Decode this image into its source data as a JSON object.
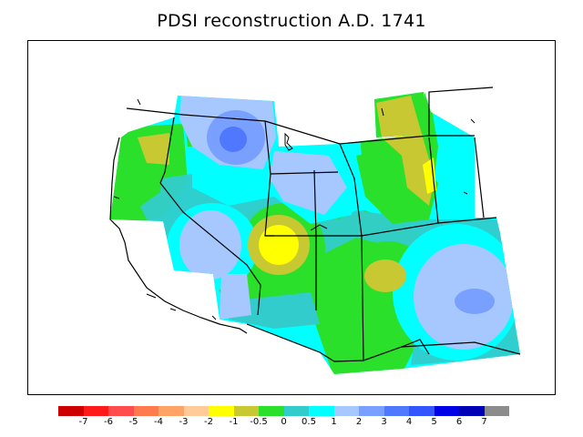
{
  "title": "PDSI reconstruction A.D. 1741",
  "legend": {
    "colors": [
      "#cc0000",
      "#ff1a1a",
      "#ff4d4d",
      "#ff7a4d",
      "#ffa366",
      "#ffcc99",
      "#ffff00",
      "#c8c832",
      "#2ae02a",
      "#33cccc",
      "#00ffff",
      "#a6c8ff",
      "#7aa0ff",
      "#5078ff",
      "#3355ff",
      "#0000e6",
      "#0000b4",
      "#8c8c8c"
    ],
    "labels": [
      "-7",
      "-6",
      "-5",
      "-4",
      "-3",
      "-2",
      "-1",
      "-0.5",
      "0",
      "0.5",
      "1",
      "2",
      "3",
      "4",
      "5",
      "6",
      "7"
    ]
  }
}
